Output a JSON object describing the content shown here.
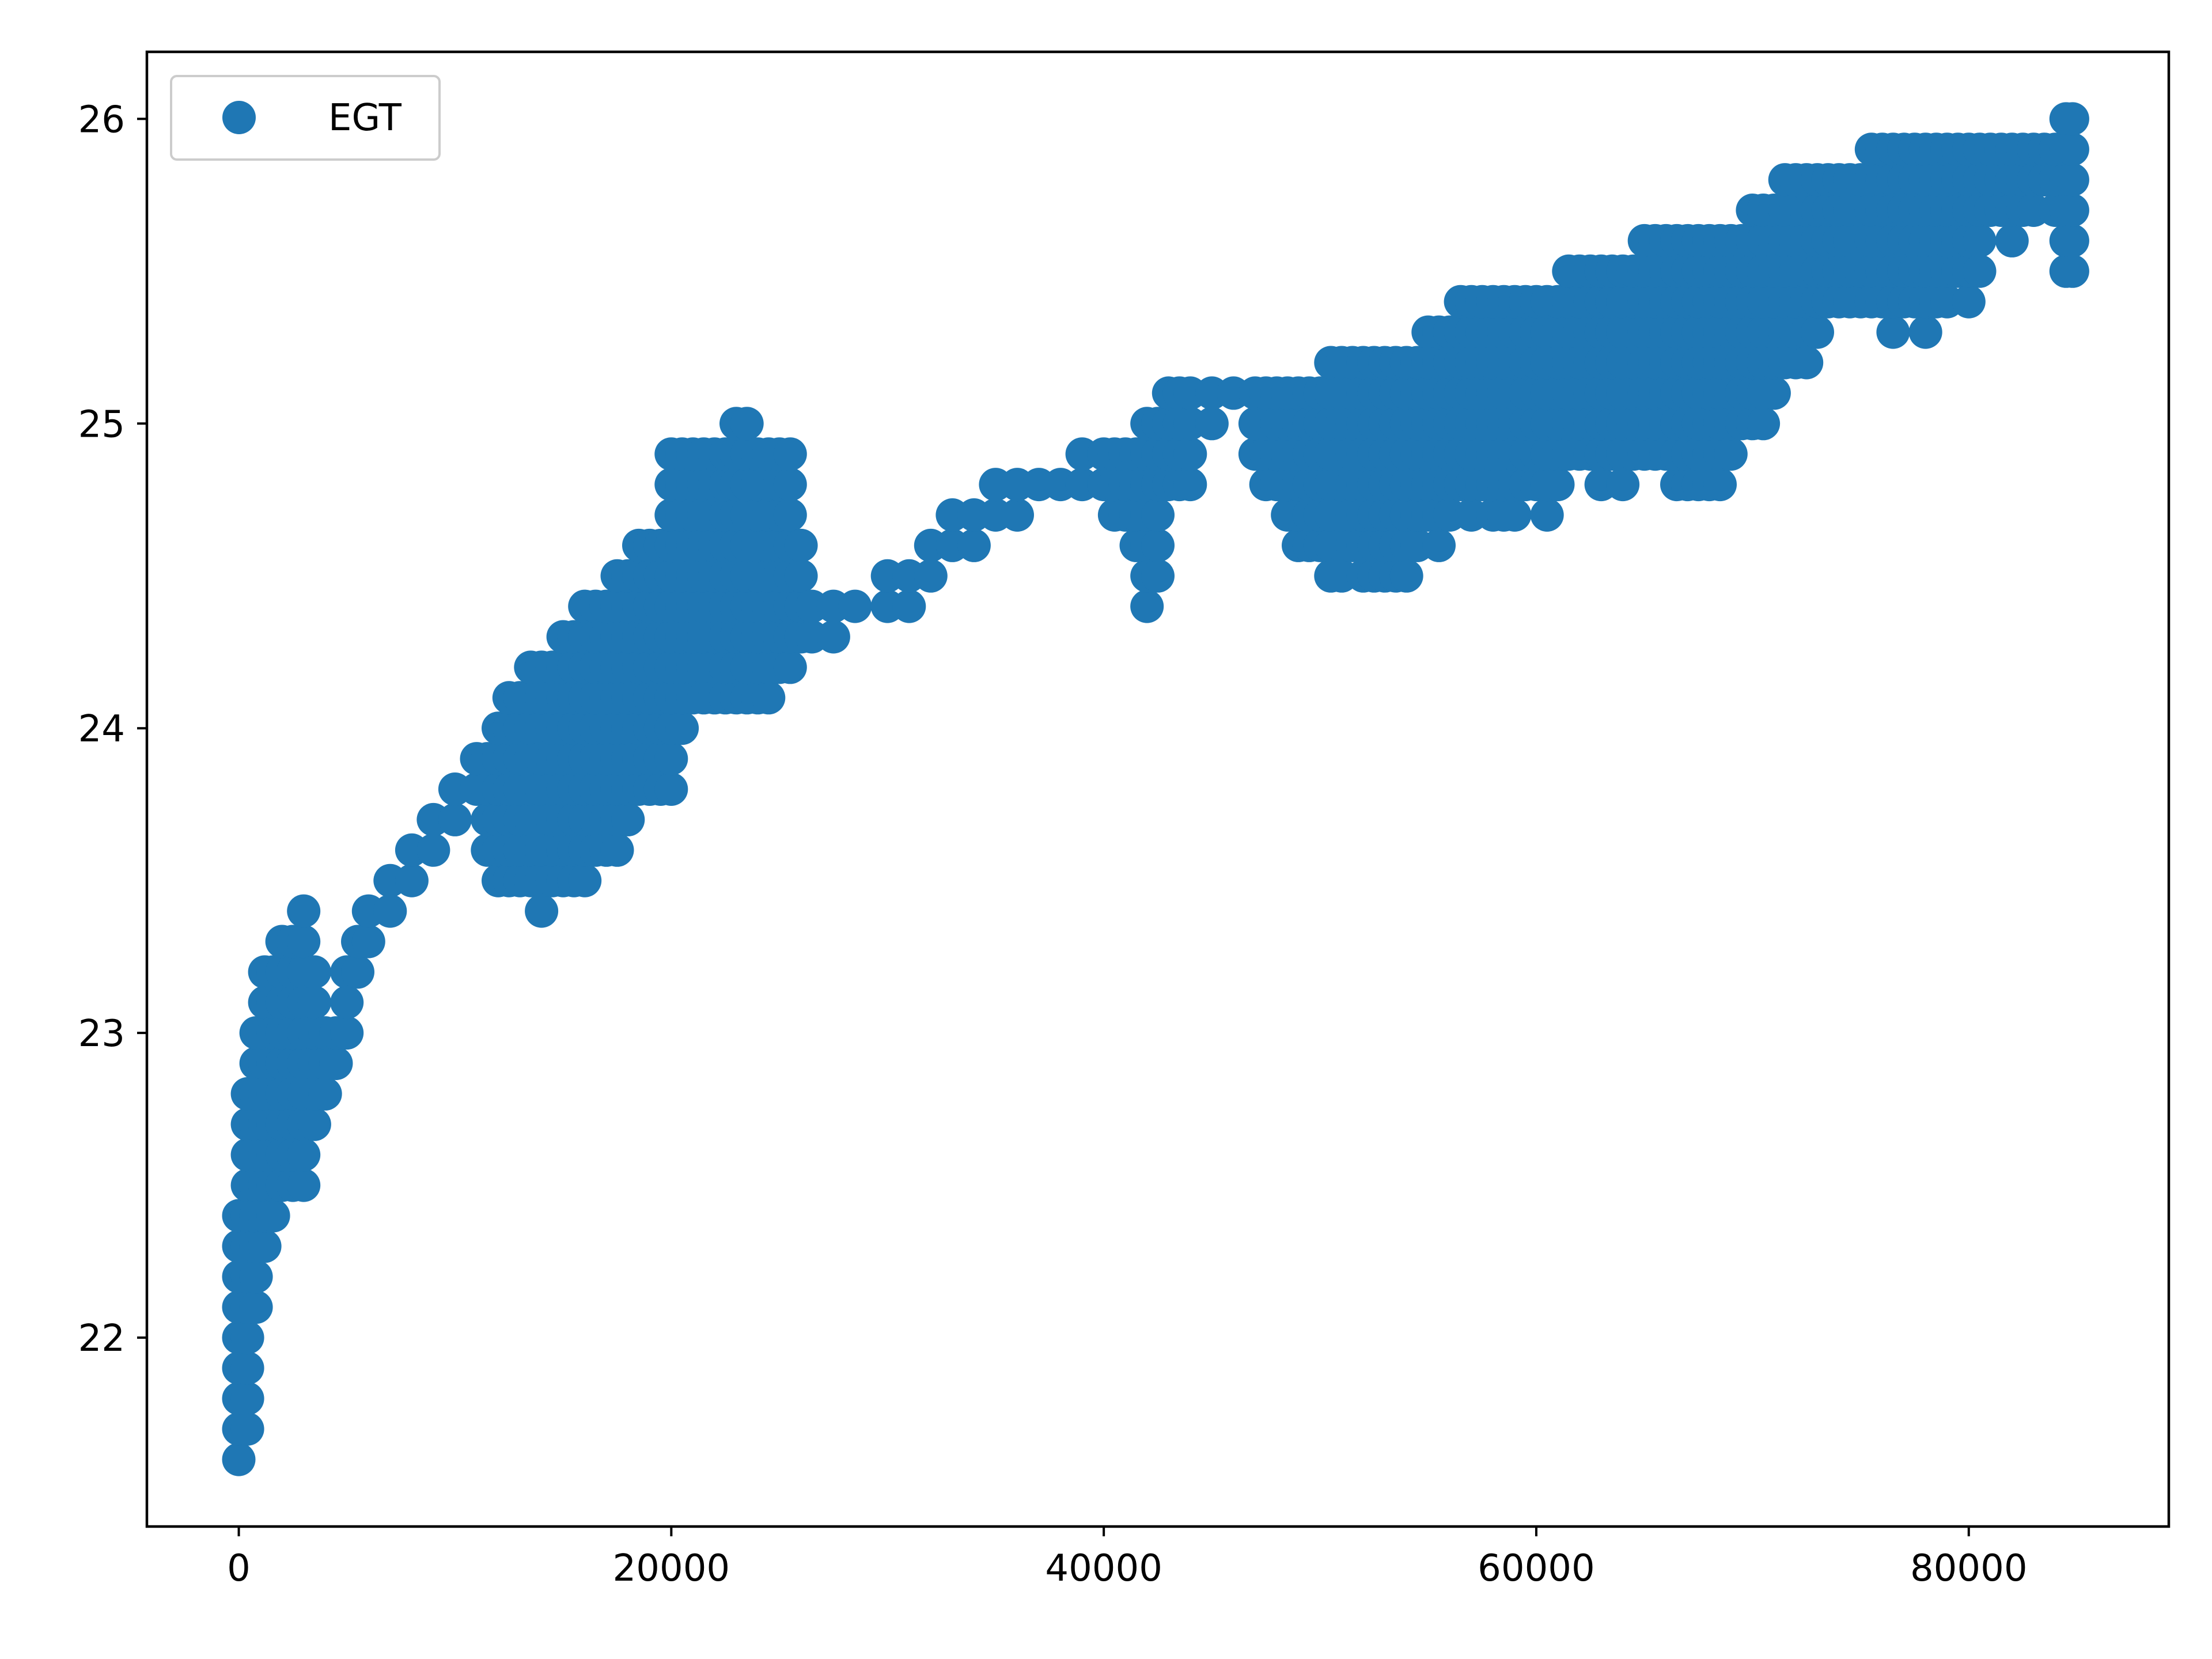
{
  "chart_data": {
    "type": "scatter",
    "title": "",
    "xlabel": "",
    "ylabel": "",
    "xlim": [
      -4250,
      89250
    ],
    "ylim": [
      21.38,
      26.22
    ],
    "xticks": [
      0,
      20000,
      40000,
      60000,
      80000
    ],
    "xtick_labels": [
      "0",
      "20000",
      "40000",
      "60000",
      "80000"
    ],
    "yticks": [
      22,
      23,
      24,
      25,
      26
    ],
    "ytick_labels": [
      "22",
      "23",
      "24",
      "25",
      "26"
    ],
    "grid": false,
    "legend": {
      "position": "top-left",
      "entries": [
        "EGT"
      ]
    },
    "series": [
      {
        "name": "EGT",
        "color": "#1f77b4",
        "marker": "circle",
        "bands": [
          [
            0,
            21.6,
            22.4
          ],
          [
            400,
            21.7,
            22.8
          ],
          [
            800,
            22.1,
            23.0
          ],
          [
            1200,
            22.3,
            23.2
          ],
          [
            1600,
            22.4,
            23.2
          ],
          [
            2000,
            22.5,
            23.3
          ],
          [
            2500,
            22.5,
            23.3
          ],
          [
            3000,
            22.5,
            23.4
          ],
          [
            3500,
            22.7,
            23.2
          ],
          [
            4000,
            22.8,
            23.0
          ],
          [
            4500,
            22.9,
            23.0
          ],
          [
            5000,
            23.0,
            23.2
          ],
          [
            5500,
            23.2,
            23.3
          ],
          [
            6000,
            23.3,
            23.4
          ],
          [
            7000,
            23.4,
            23.5
          ],
          [
            8000,
            23.5,
            23.6
          ],
          [
            9000,
            23.6,
            23.7
          ],
          [
            10000,
            23.7,
            23.8
          ],
          [
            11000,
            23.8,
            23.9
          ],
          [
            11500,
            23.6,
            23.9
          ],
          [
            12000,
            23.5,
            24.0
          ],
          [
            12500,
            23.5,
            24.1
          ],
          [
            13000,
            23.5,
            24.1
          ],
          [
            13500,
            23.5,
            24.2
          ],
          [
            14000,
            23.4,
            24.2
          ],
          [
            14500,
            23.5,
            24.2
          ],
          [
            15000,
            23.5,
            24.3
          ],
          [
            15500,
            23.5,
            24.3
          ],
          [
            16000,
            23.5,
            24.4
          ],
          [
            16500,
            23.6,
            24.4
          ],
          [
            17000,
            23.6,
            24.4
          ],
          [
            17500,
            23.6,
            24.5
          ],
          [
            18000,
            23.7,
            24.5
          ],
          [
            18500,
            23.8,
            24.6
          ],
          [
            19000,
            23.8,
            24.6
          ],
          [
            19500,
            23.8,
            24.6
          ],
          [
            20000,
            23.8,
            24.9
          ],
          [
            20500,
            24.0,
            24.9
          ],
          [
            21000,
            24.1,
            24.9
          ],
          [
            21500,
            24.1,
            24.9
          ],
          [
            22000,
            24.1,
            24.9
          ],
          [
            22500,
            24.1,
            24.9
          ],
          [
            23000,
            24.1,
            25.0
          ],
          [
            23500,
            24.1,
            25.0
          ],
          [
            24000,
            24.1,
            24.9
          ],
          [
            24500,
            24.1,
            24.9
          ],
          [
            25000,
            24.2,
            24.9
          ],
          [
            25500,
            24.2,
            24.9
          ],
          [
            26000,
            24.3,
            24.6
          ],
          [
            26500,
            24.3,
            24.4
          ],
          [
            27500,
            24.3,
            24.4
          ],
          [
            28500,
            24.4,
            24.4
          ],
          [
            30000,
            24.4,
            24.5
          ],
          [
            31000,
            24.4,
            24.5
          ],
          [
            32000,
            24.5,
            24.6
          ],
          [
            33000,
            24.6,
            24.7
          ],
          [
            34000,
            24.6,
            24.7
          ],
          [
            35000,
            24.7,
            24.8
          ],
          [
            36000,
            24.7,
            24.8
          ],
          [
            37000,
            24.8,
            24.8
          ],
          [
            38000,
            24.8,
            24.8
          ],
          [
            39000,
            24.8,
            24.9
          ],
          [
            40000,
            24.8,
            24.9
          ],
          [
            40500,
            24.7,
            24.9
          ],
          [
            41000,
            24.7,
            24.9
          ],
          [
            41500,
            24.6,
            24.9
          ],
          [
            42000,
            24.4,
            25.0
          ],
          [
            42500,
            24.5,
            25.0
          ],
          [
            43000,
            24.8,
            25.1
          ],
          [
            43500,
            24.8,
            25.1
          ],
          [
            44000,
            24.8,
            25.1
          ],
          [
            45000,
            25.0,
            25.1
          ],
          [
            46000,
            25.1,
            25.1
          ],
          [
            47000,
            24.9,
            25.1
          ],
          [
            47500,
            24.8,
            25.1
          ],
          [
            48000,
            24.8,
            25.1
          ],
          [
            48500,
            24.7,
            25.1
          ],
          [
            49000,
            24.6,
            25.1
          ],
          [
            49500,
            24.6,
            25.1
          ],
          [
            50000,
            24.6,
            25.1
          ],
          [
            50500,
            24.5,
            25.2
          ],
          [
            51000,
            24.5,
            25.2
          ],
          [
            51500,
            24.6,
            25.2
          ],
          [
            52000,
            24.5,
            25.2
          ],
          [
            52500,
            24.5,
            25.2
          ],
          [
            53000,
            24.5,
            25.2
          ],
          [
            53500,
            24.5,
            25.2
          ],
          [
            54000,
            24.5,
            25.2
          ],
          [
            54500,
            24.6,
            25.2
          ],
          [
            55000,
            24.7,
            25.3
          ],
          [
            55500,
            24.6,
            25.3
          ],
          [
            56000,
            24.7,
            25.3
          ],
          [
            56500,
            24.8,
            25.4
          ],
          [
            57000,
            24.7,
            25.4
          ],
          [
            57500,
            24.8,
            25.4
          ],
          [
            58000,
            24.7,
            25.4
          ],
          [
            58500,
            24.7,
            25.4
          ],
          [
            59000,
            24.7,
            25.4
          ],
          [
            59500,
            24.8,
            25.4
          ],
          [
            60000,
            24.8,
            25.4
          ],
          [
            60500,
            24.7,
            25.4
          ],
          [
            61000,
            24.8,
            25.4
          ],
          [
            61500,
            24.9,
            25.5
          ],
          [
            62000,
            24.9,
            25.5
          ],
          [
            62500,
            24.9,
            25.5
          ],
          [
            63000,
            24.8,
            25.5
          ],
          [
            63500,
            24.9,
            25.5
          ],
          [
            64000,
            24.8,
            25.5
          ],
          [
            64500,
            24.9,
            25.5
          ],
          [
            65000,
            24.9,
            25.6
          ],
          [
            65500,
            24.9,
            25.6
          ],
          [
            66000,
            24.9,
            25.6
          ],
          [
            66500,
            24.8,
            25.6
          ],
          [
            67000,
            24.8,
            25.6
          ],
          [
            67500,
            24.8,
            25.6
          ],
          [
            68000,
            24.8,
            25.6
          ],
          [
            68500,
            24.8,
            25.6
          ],
          [
            69000,
            24.9,
            25.6
          ],
          [
            69500,
            25.0,
            25.6
          ],
          [
            70000,
            25.0,
            25.7
          ],
          [
            70500,
            25.0,
            25.7
          ],
          [
            71000,
            25.1,
            25.7
          ],
          [
            71500,
            25.2,
            25.8
          ],
          [
            72000,
            25.2,
            25.8
          ],
          [
            72500,
            25.2,
            25.8
          ],
          [
            73000,
            25.3,
            25.8
          ],
          [
            73500,
            25.4,
            25.8
          ],
          [
            74000,
            25.4,
            25.8
          ],
          [
            74500,
            25.4,
            25.8
          ],
          [
            75000,
            25.4,
            25.8
          ],
          [
            75500,
            25.4,
            25.9
          ],
          [
            76000,
            25.4,
            25.9
          ],
          [
            76500,
            25.3,
            25.9
          ],
          [
            77000,
            25.4,
            25.9
          ],
          [
            77500,
            25.4,
            25.9
          ],
          [
            78000,
            25.3,
            25.9
          ],
          [
            78500,
            25.4,
            25.9
          ],
          [
            79000,
            25.4,
            25.9
          ],
          [
            79500,
            25.5,
            25.9
          ],
          [
            80000,
            25.4,
            25.9
          ],
          [
            80500,
            25.5,
            25.9
          ],
          [
            81000,
            25.7,
            25.9
          ],
          [
            81500,
            25.7,
            25.9
          ],
          [
            82000,
            25.6,
            25.9
          ],
          [
            82500,
            25.7,
            25.9
          ],
          [
            83000,
            25.7,
            25.9
          ],
          [
            83500,
            25.8,
            25.9
          ],
          [
            84000,
            25.7,
            25.9
          ],
          [
            84500,
            25.5,
            26.0
          ],
          [
            84800,
            25.5,
            26.0
          ]
        ]
      }
    ]
  }
}
